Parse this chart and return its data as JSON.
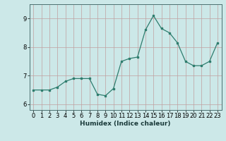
{
  "x": [
    0,
    1,
    2,
    3,
    4,
    5,
    6,
    7,
    8,
    9,
    10,
    11,
    12,
    13,
    14,
    15,
    16,
    17,
    18,
    19,
    20,
    21,
    22,
    23
  ],
  "y": [
    6.5,
    6.5,
    6.5,
    6.6,
    6.8,
    6.9,
    6.9,
    6.9,
    6.35,
    6.3,
    6.55,
    7.5,
    7.6,
    7.65,
    8.6,
    9.1,
    8.65,
    8.5,
    8.15,
    7.5,
    7.35,
    7.35,
    7.5,
    8.15
  ],
  "line_color": "#2e7d6e",
  "bg_color": "#cce8e8",
  "grid_color": "#c0a0a0",
  "xlabel": "Humidex (Indice chaleur)",
  "ylim": [
    5.8,
    9.5
  ],
  "xlim": [
    -0.5,
    23.5
  ],
  "yticks": [
    6,
    7,
    8,
    9
  ],
  "xticks": [
    0,
    1,
    2,
    3,
    4,
    5,
    6,
    7,
    8,
    9,
    10,
    11,
    12,
    13,
    14,
    15,
    16,
    17,
    18,
    19,
    20,
    21,
    22,
    23
  ],
  "label_fontsize": 6.5,
  "tick_fontsize": 6.0
}
